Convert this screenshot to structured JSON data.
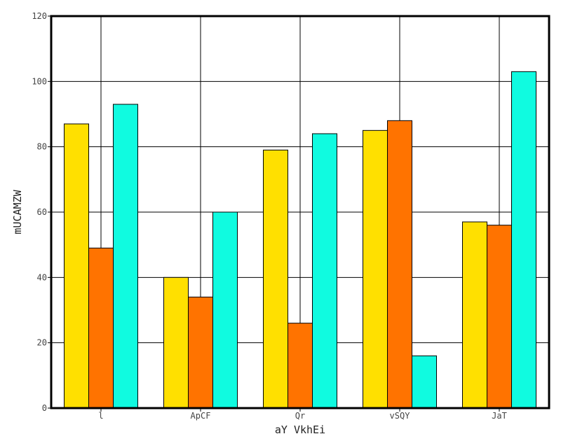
{
  "chart_data": {
    "type": "bar",
    "title": "",
    "xlabel": "aY VkhEi",
    "ylabel": "mUCAMZW",
    "categories": [
      "l",
      "ApCF",
      "Qr",
      "vSQY",
      "JaT"
    ],
    "series": [
      {
        "color": "#FFE000",
        "values": [
          87,
          40,
          79,
          85,
          57
        ]
      },
      {
        "color": "#FF7300",
        "values": [
          49,
          34,
          26,
          88,
          56
        ]
      },
      {
        "color": "#10FBE0",
        "values": [
          93,
          60,
          84,
          16,
          103
        ]
      }
    ],
    "ylim": [
      0,
      120
    ],
    "yticks": [
      0,
      20,
      40,
      60,
      80,
      100,
      120
    ],
    "grid": true,
    "legend": "none"
  }
}
